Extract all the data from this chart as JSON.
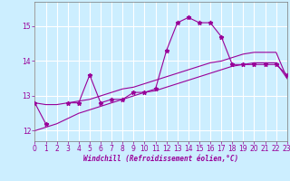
{
  "xlabel": "Windchill (Refroidissement éolien,°C)",
  "background_color": "#cceeff",
  "grid_color": "#ffffff",
  "line_color": "#990099",
  "x_values": [
    0,
    1,
    2,
    3,
    4,
    5,
    6,
    7,
    8,
    9,
    10,
    11,
    12,
    13,
    14,
    15,
    16,
    17,
    18,
    19,
    20,
    21,
    22,
    23
  ],
  "y_main": [
    12.8,
    12.2,
    null,
    12.8,
    12.8,
    13.6,
    12.8,
    12.9,
    12.9,
    13.1,
    13.1,
    13.2,
    14.3,
    15.1,
    15.25,
    15.1,
    15.1,
    14.7,
    13.9,
    13.9,
    13.9,
    13.9,
    13.9,
    13.6
  ],
  "y_line1": [
    12.0,
    12.1,
    12.2,
    12.35,
    12.5,
    12.6,
    12.7,
    12.8,
    12.9,
    13.0,
    13.1,
    13.15,
    13.25,
    13.35,
    13.45,
    13.55,
    13.65,
    13.75,
    13.85,
    13.9,
    13.95,
    13.95,
    13.95,
    13.5
  ],
  "y_line2": [
    12.8,
    12.75,
    12.75,
    12.8,
    12.85,
    12.9,
    13.0,
    13.1,
    13.2,
    13.25,
    13.35,
    13.45,
    13.55,
    13.65,
    13.75,
    13.85,
    13.95,
    14.0,
    14.1,
    14.2,
    14.25,
    14.25,
    14.25,
    13.5
  ],
  "ylim": [
    11.7,
    15.7
  ],
  "xlim": [
    0,
    23
  ],
  "yticks": [
    12,
    13,
    14,
    15
  ],
  "xticks": [
    0,
    1,
    2,
    3,
    4,
    5,
    6,
    7,
    8,
    9,
    10,
    11,
    12,
    13,
    14,
    15,
    16,
    17,
    18,
    19,
    20,
    21,
    22,
    23
  ]
}
